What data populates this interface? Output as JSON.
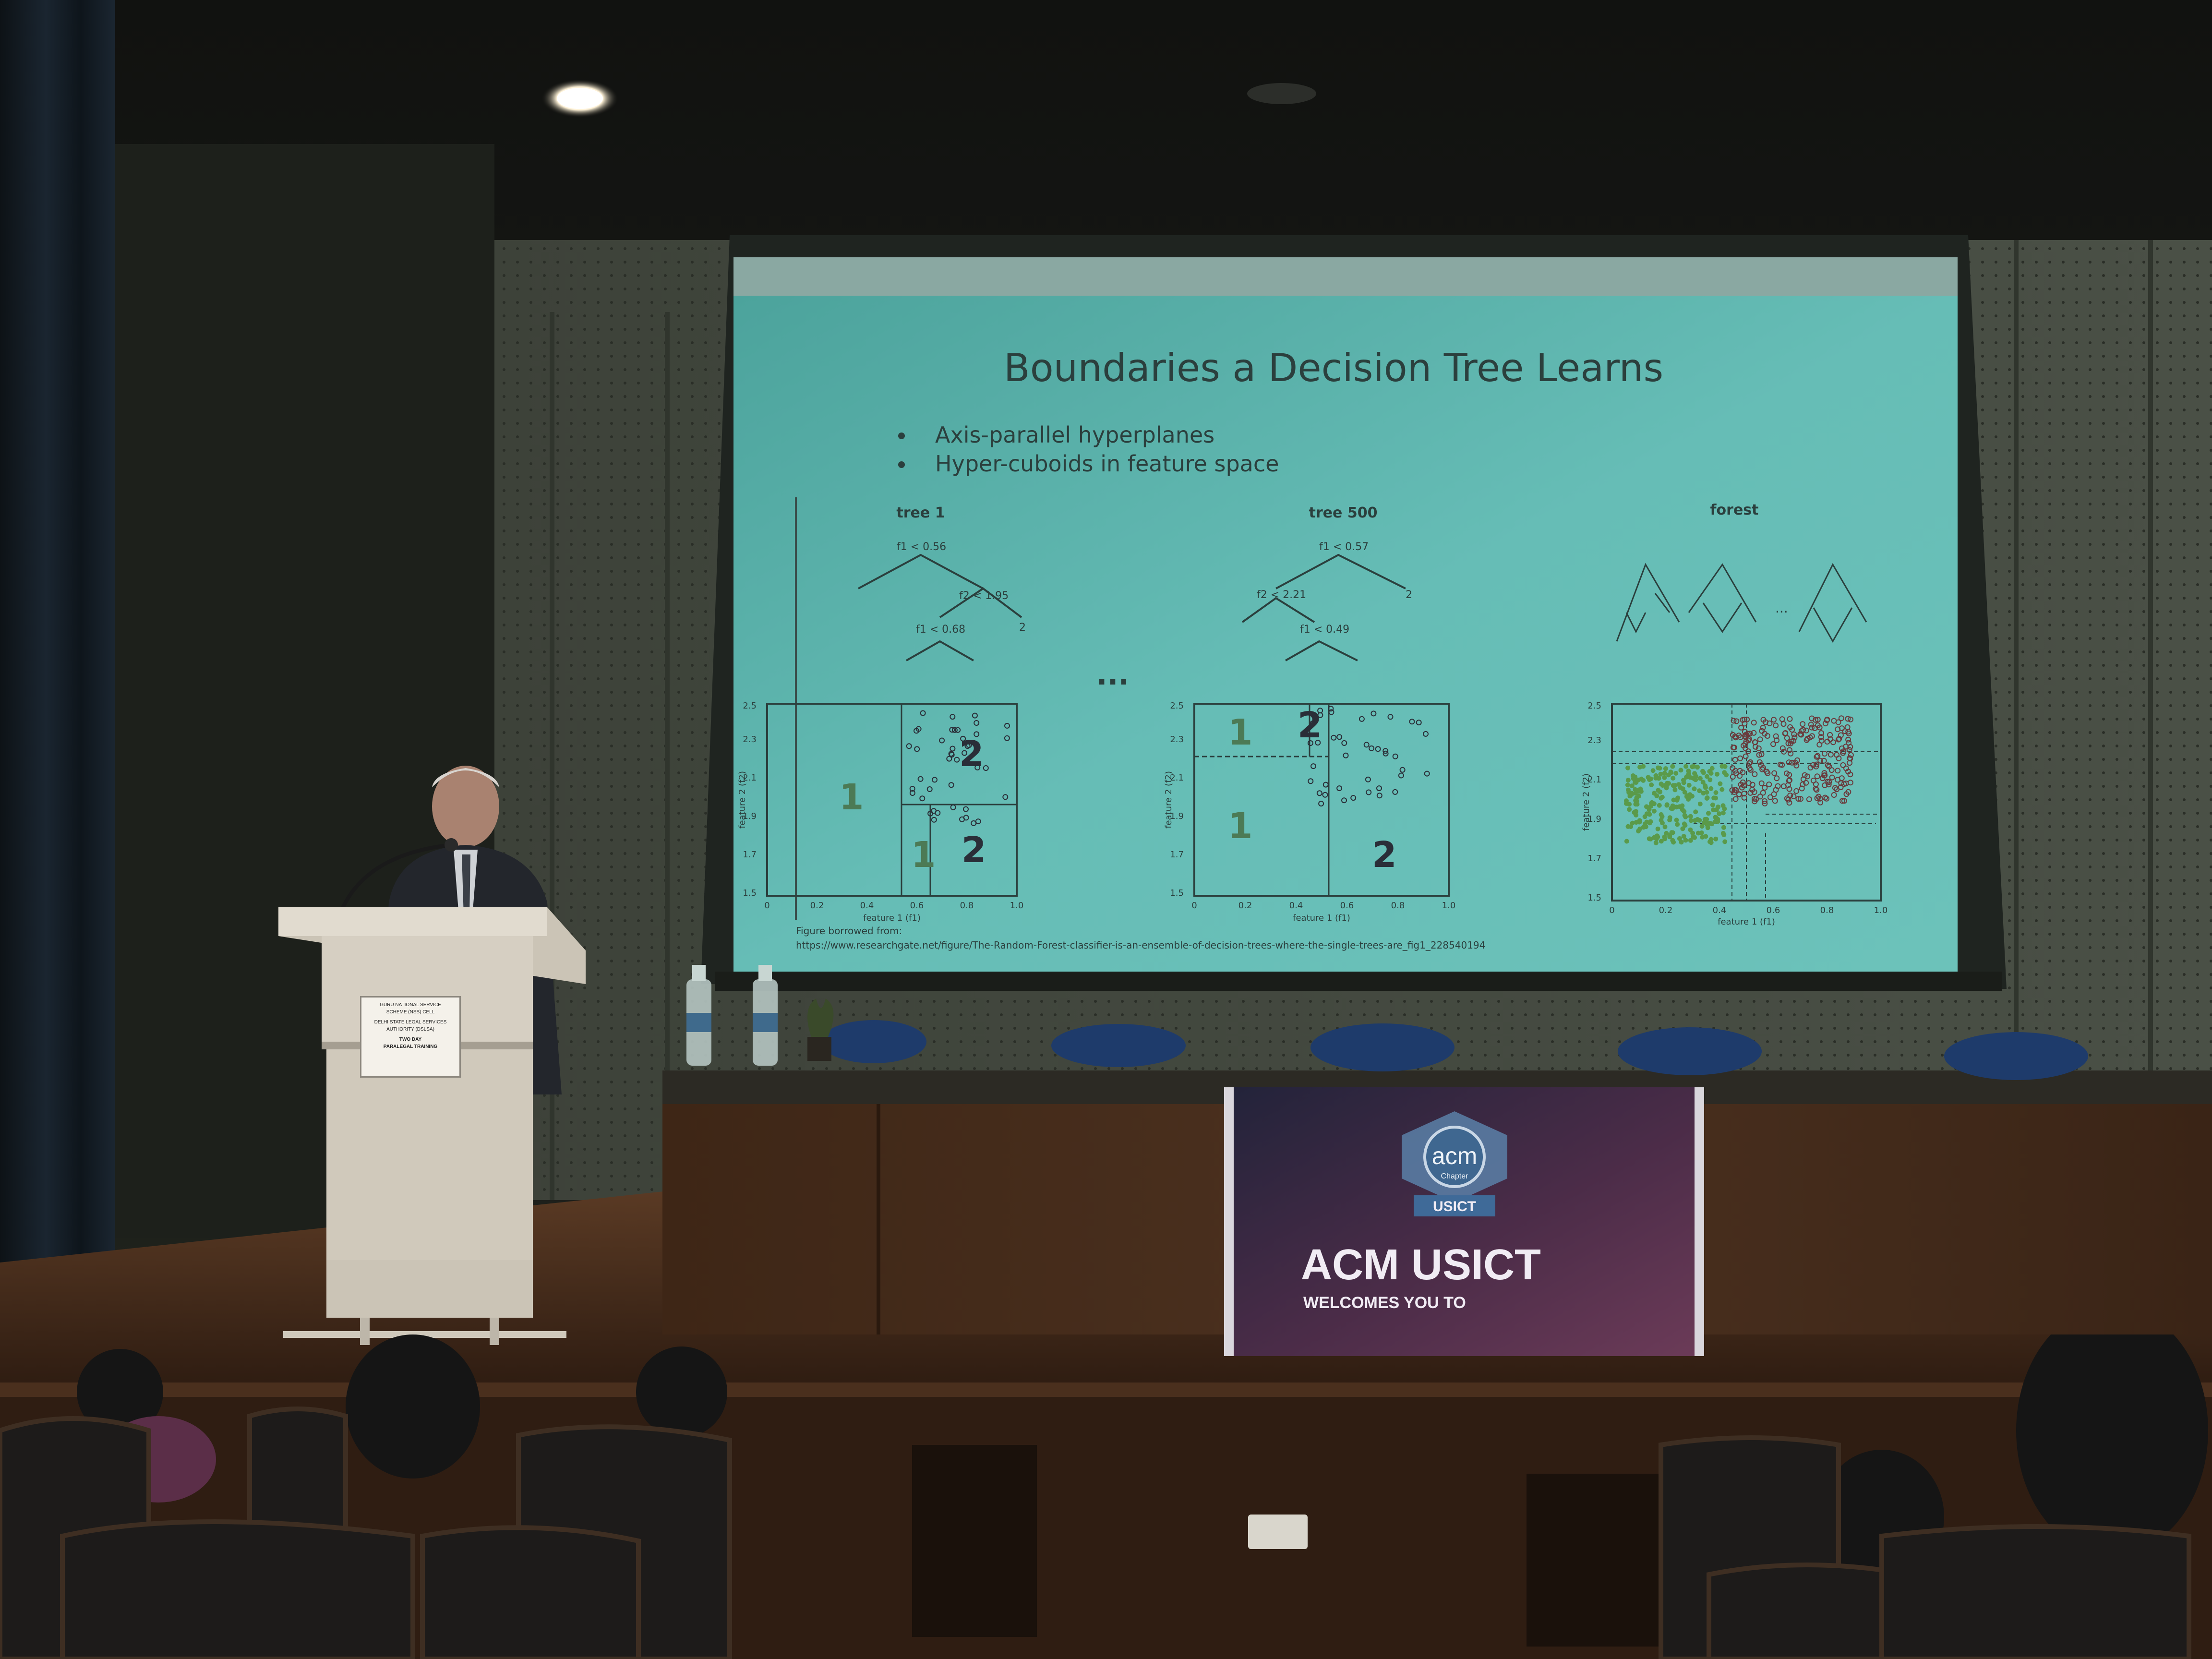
{
  "slide": {
    "title": "Boundaries a Decision Tree Learns",
    "bullets": [
      "Axis-parallel hyperplanes",
      "Hyper-cuboids in feature space"
    ],
    "ellipsis": "...",
    "citation_prefix": "Figure borrowed from:",
    "citation_url": "https://www.researchgate.net/figure/The-Random-Forest-classifier-is-an-ensemble-of-decision-trees-where-the-single-trees-are_fig1_228540194",
    "panels": [
      {
        "title": "tree 1",
        "nodes": [
          "f1 < 0.56",
          "f2 < 1.95",
          "f1 < 0.68"
        ],
        "leaf_label": "2",
        "regions": [
          "1",
          "2",
          "1",
          "2"
        ],
        "x_ticks": [
          "0",
          "0.2",
          "0.4",
          "0.6",
          "0.8",
          "1.0"
        ],
        "y_ticks": [
          "1.5",
          "1.7",
          "1.9",
          "2.1",
          "2.3",
          "2.5"
        ],
        "xlabel": "feature 1 (f1)",
        "ylabel": "feature 2 (f2)"
      },
      {
        "title": "tree 500",
        "nodes": [
          "f1 < 0.57",
          "f2 < 2.21",
          "f1 < 0.49"
        ],
        "leaf_label": "2",
        "regions": [
          "1",
          "2",
          "1",
          "2"
        ],
        "x_ticks": [
          "0",
          "0.2",
          "0.4",
          "0.6",
          "0.8",
          "1.0"
        ],
        "y_ticks": [
          "1.5",
          "1.7",
          "1.9",
          "2.1",
          "2.3",
          "2.5"
        ],
        "xlabel": "feature 1 (f1)",
        "ylabel": "feature 2 (f2)"
      },
      {
        "title": "forest",
        "x_ticks": [
          "0",
          "0.2",
          "0.4",
          "0.6",
          "0.8",
          "1.0"
        ],
        "y_ticks": [
          "1.5",
          "1.7",
          "1.9",
          "2.1",
          "2.3",
          "2.5"
        ],
        "xlabel": "feature 1 (f1)",
        "ylabel": "feature 2 (f2)"
      }
    ]
  },
  "banner": {
    "logo_text": "acm",
    "logo_sub": "Chapter",
    "ribbon": "USICT",
    "headline": "ACM USICT",
    "subline": "WELCOMES YOU TO"
  },
  "podium_sign": {
    "lines": [
      "GURU NATIONAL SERVICE",
      "SCHEME (NSS) CELL",
      "DELHI STATE LEGAL SERVICES",
      "AUTHORITY (DSLSA)",
      "TWO DAY",
      "PARALEGAL TRAINING"
    ]
  },
  "colors": {
    "slide_bg": "#5fb7b0",
    "slide_text": "#2b3f3d",
    "class1_green": "#5a9a4a",
    "class2_maroon": "#6a3a3c",
    "banner_bg": "#2c2a3e",
    "stage_wood": "#4a3020"
  }
}
